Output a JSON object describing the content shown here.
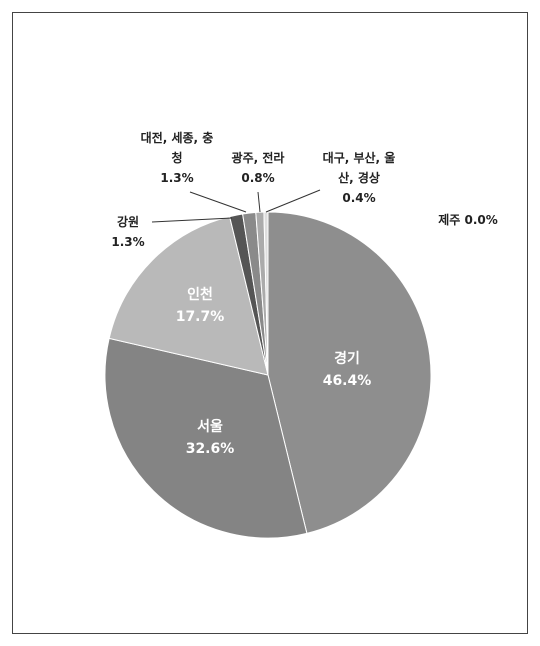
{
  "chart_data": {
    "type": "pie",
    "categories": [
      "경기",
      "서울",
      "인천",
      "강원",
      "대전, 세종, 충청",
      "광주, 전라",
      "대구, 부산, 울산, 경상",
      "제주"
    ],
    "values": [
      46.4,
      32.6,
      17.7,
      1.3,
      1.3,
      0.8,
      0.4,
      0.0
    ],
    "value_labels": [
      "46.4%",
      "32.6%",
      "17.7%",
      "1.3%",
      "1.3%",
      "0.8%",
      "0.4%",
      "0.0%"
    ],
    "colors": [
      "#8e8e8e",
      "#848484",
      "#b9b9b9",
      "#555555",
      "#8a8a8a",
      "#ababab",
      "#dedede",
      "#f2f2f2"
    ]
  }
}
